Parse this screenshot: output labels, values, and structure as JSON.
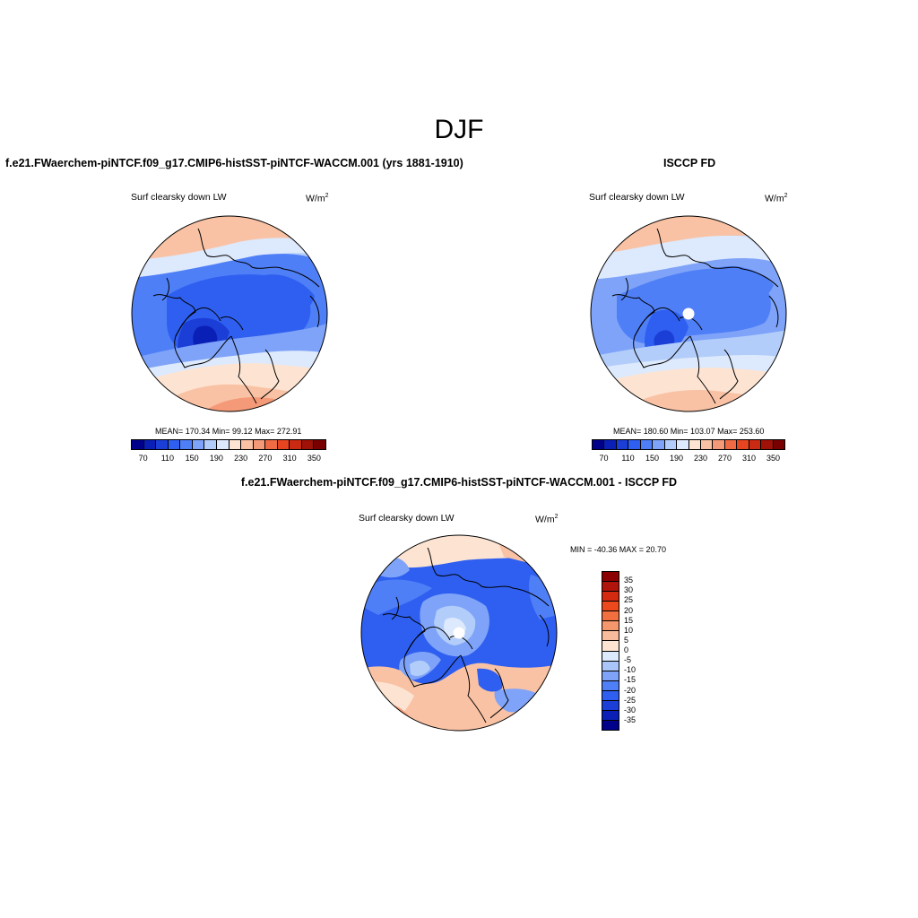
{
  "figure": {
    "title": "DJF"
  },
  "panels": [
    {
      "title": "f.e21.FWaerchem-piNTCF.f09_g17.CMIP6-histSST-piNTCF-WACCM.001 (yrs 1881-1910)",
      "variable": "Surf clearsky down LW",
      "units": "W/m",
      "units_exp": "2",
      "stats": "MEAN= 170.34  Min=  99.12  Max= 272.91",
      "colorbar": {
        "colors": [
          "#00008b",
          "#0a1fb5",
          "#1b3ed6",
          "#2f5ff0",
          "#4f7ff7",
          "#7ea3f8",
          "#b3cdfa",
          "#dde9fc",
          "#fde4d2",
          "#f9c2a5",
          "#f59a78",
          "#f06b44",
          "#e64520",
          "#cb2a12",
          "#a01208",
          "#780000"
        ],
        "tick_labels": [
          "70",
          "110",
          "150",
          "190",
          "230",
          "270",
          "310",
          "350"
        ]
      }
    },
    {
      "title": "ISCCP FD",
      "variable": "Surf clearsky down LW",
      "units": "W/m",
      "units_exp": "2",
      "stats": "MEAN= 180.60  Min= 103.07  Max= 253.60",
      "colorbar": {
        "colors": [
          "#00008b",
          "#0a1fb5",
          "#1b3ed6",
          "#2f5ff0",
          "#4f7ff7",
          "#7ea3f8",
          "#b3cdfa",
          "#dde9fc",
          "#fde4d2",
          "#f9c2a5",
          "#f59a78",
          "#f06b44",
          "#e64520",
          "#cb2a12",
          "#a01208",
          "#780000"
        ],
        "tick_labels": [
          "70",
          "110",
          "150",
          "190",
          "230",
          "270",
          "310",
          "350"
        ]
      }
    },
    {
      "title": "f.e21.FWaerchem-piNTCF.f09_g17.CMIP6-histSST-piNTCF-WACCM.001 - ISCCP FD",
      "variable": "Surf clearsky down LW",
      "units": "W/m",
      "units_exp": "2",
      "stats": "MIN = -40.36 MAX =  20.70",
      "colorbar": {
        "colors": [
          "#8b0000",
          "#b0140a",
          "#d42a10",
          "#ec4a1c",
          "#f2703f",
          "#f5976c",
          "#f8bc9c",
          "#fde4d2",
          "#dde9fc",
          "#aac5f7",
          "#7ea3f8",
          "#4f7ff7",
          "#2f5ff0",
          "#1b3ed6",
          "#0a1fb5",
          "#00008b"
        ],
        "tick_labels": [
          "35",
          "30",
          "25",
          "20",
          "15",
          "10",
          "5",
          "0",
          "-5",
          "-10",
          "-15",
          "-20",
          "-25",
          "-30",
          "-35"
        ]
      }
    }
  ]
}
